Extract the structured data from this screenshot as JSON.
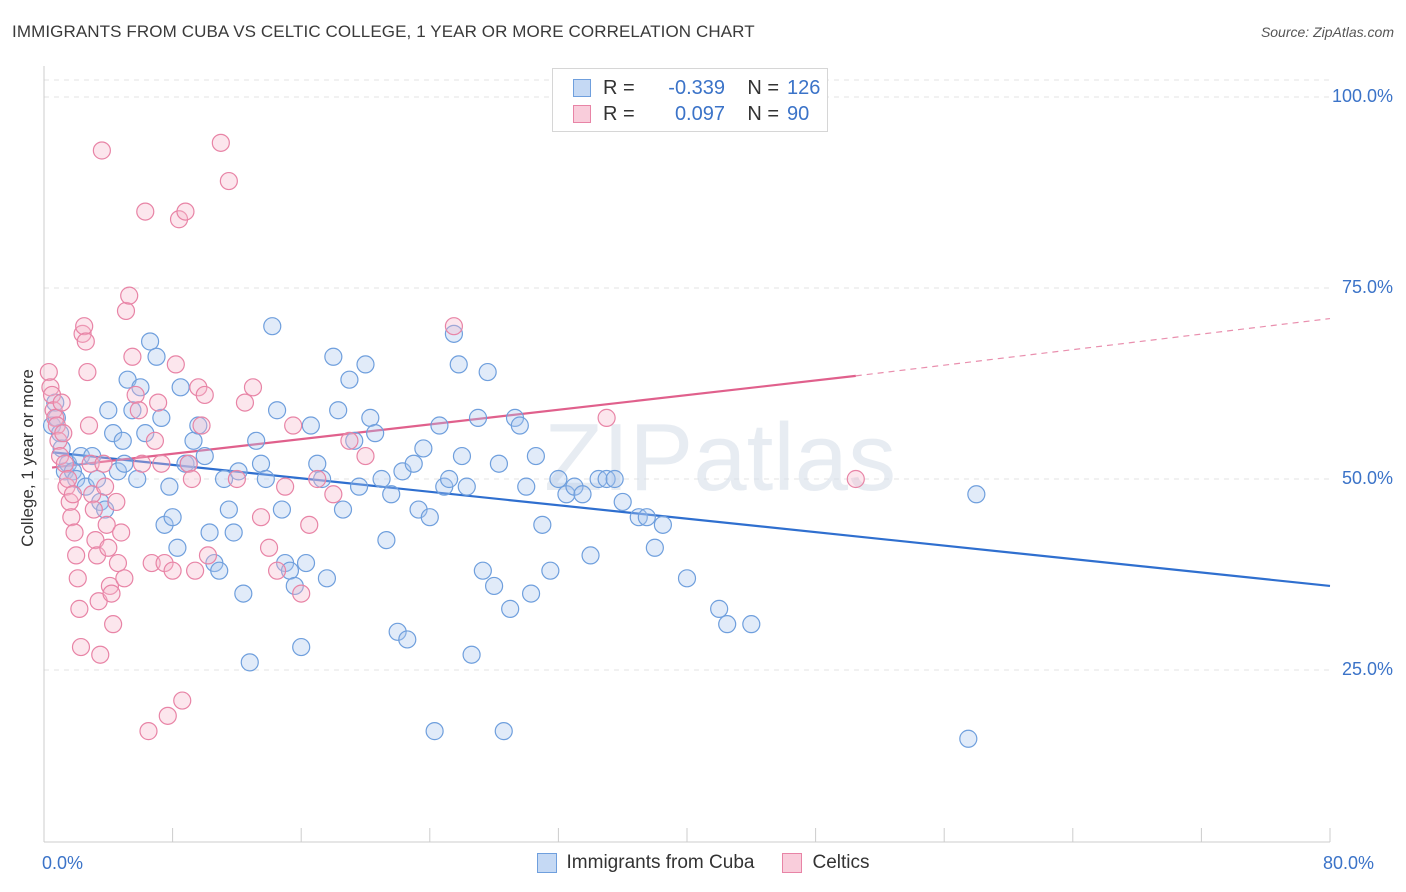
{
  "title": "IMMIGRANTS FROM CUBA VS CELTIC COLLEGE, 1 YEAR OR MORE CORRELATION CHART",
  "source": "Source: ZipAtlas.com",
  "watermark": "ZIPatlas",
  "legend": {
    "r_label": "R =",
    "n_label": "N =",
    "rows": [
      {
        "name": "Immigrants from Cuba",
        "r": "-0.339",
        "n": "126",
        "color": "#a9c7ef",
        "stroke": "#6f9fdd"
      },
      {
        "name": "Celtics",
        "r": "0.097",
        "n": "90",
        "color": "#f7b6ca",
        "stroke": "#e884a6"
      }
    ]
  },
  "chart_data": {
    "type": "scatter",
    "title": "IMMIGRANTS FROM CUBA VS CELTIC COLLEGE, 1 YEAR OR MORE CORRELATION CHART",
    "xlabel": "",
    "ylabel": "College, 1 year or more",
    "xlim": [
      0,
      80
    ],
    "ylim": [
      0,
      105
    ],
    "x_tick_labels": [
      "0.0%",
      "80.0%"
    ],
    "y_ticks": [
      25,
      50,
      75,
      100
    ],
    "y_tick_labels": [
      "25.0%",
      "50.0%",
      "75.0%",
      "100.0%"
    ],
    "grid": true,
    "legend_position": "top-center",
    "series": [
      {
        "name": "Immigrants from Cuba",
        "color": "#6f9fdd",
        "line_color": "#2f6fcf",
        "trend": {
          "x": [
            0.5,
            80
          ],
          "y": [
            53.5,
            36.0
          ]
        },
        "points": [
          [
            0.5,
            57
          ],
          [
            0.7,
            60
          ],
          [
            0.8,
            58
          ],
          [
            1.0,
            56
          ],
          [
            1.1,
            54
          ],
          [
            1.3,
            51
          ],
          [
            1.5,
            52
          ],
          [
            1.8,
            51
          ],
          [
            2.0,
            50
          ],
          [
            2.3,
            53
          ],
          [
            2.6,
            49
          ],
          [
            3.0,
            53
          ],
          [
            3.3,
            50
          ],
          [
            3.5,
            47
          ],
          [
            3.8,
            46
          ],
          [
            4.0,
            59
          ],
          [
            4.3,
            56
          ],
          [
            4.6,
            51
          ],
          [
            4.9,
            55
          ],
          [
            5.0,
            52
          ],
          [
            5.2,
            63
          ],
          [
            5.5,
            59
          ],
          [
            5.8,
            50
          ],
          [
            6.0,
            62
          ],
          [
            6.3,
            56
          ],
          [
            6.6,
            68
          ],
          [
            7.0,
            66
          ],
          [
            7.3,
            58
          ],
          [
            7.5,
            44
          ],
          [
            7.8,
            49
          ],
          [
            8.0,
            45
          ],
          [
            8.3,
            41
          ],
          [
            8.5,
            62
          ],
          [
            8.8,
            52
          ],
          [
            9.0,
            52
          ],
          [
            9.3,
            55
          ],
          [
            9.6,
            57
          ],
          [
            10.0,
            53
          ],
          [
            10.3,
            43
          ],
          [
            10.6,
            39
          ],
          [
            10.9,
            38
          ],
          [
            11.2,
            50
          ],
          [
            11.5,
            46
          ],
          [
            11.8,
            43
          ],
          [
            12.1,
            51
          ],
          [
            12.4,
            35
          ],
          [
            12.8,
            26
          ],
          [
            13.2,
            55
          ],
          [
            13.5,
            52
          ],
          [
            13.8,
            50
          ],
          [
            14.2,
            70
          ],
          [
            14.5,
            59
          ],
          [
            14.8,
            46
          ],
          [
            15.0,
            39
          ],
          [
            15.3,
            38
          ],
          [
            15.6,
            36
          ],
          [
            16.0,
            28
          ],
          [
            16.3,
            39
          ],
          [
            16.6,
            57
          ],
          [
            17.0,
            52
          ],
          [
            17.3,
            50
          ],
          [
            17.6,
            37
          ],
          [
            18.0,
            66
          ],
          [
            18.3,
            59
          ],
          [
            18.6,
            46
          ],
          [
            19.0,
            63
          ],
          [
            19.3,
            55
          ],
          [
            19.6,
            49
          ],
          [
            20.0,
            65
          ],
          [
            20.3,
            58
          ],
          [
            20.6,
            56
          ],
          [
            21.0,
            50
          ],
          [
            21.3,
            42
          ],
          [
            21.6,
            48
          ],
          [
            22.0,
            30
          ],
          [
            22.3,
            51
          ],
          [
            22.6,
            29
          ],
          [
            23.0,
            52
          ],
          [
            23.3,
            46
          ],
          [
            23.6,
            54
          ],
          [
            24.0,
            45
          ],
          [
            24.3,
            17
          ],
          [
            24.6,
            57
          ],
          [
            24.9,
            49
          ],
          [
            25.2,
            50
          ],
          [
            25.5,
            69
          ],
          [
            25.8,
            65
          ],
          [
            26.0,
            53
          ],
          [
            26.3,
            49
          ],
          [
            26.6,
            27
          ],
          [
            27.0,
            58
          ],
          [
            27.3,
            38
          ],
          [
            27.6,
            64
          ],
          [
            28.0,
            36
          ],
          [
            28.3,
            52
          ],
          [
            28.6,
            17
          ],
          [
            29.0,
            33
          ],
          [
            29.3,
            58
          ],
          [
            29.6,
            57
          ],
          [
            30.0,
            49
          ],
          [
            30.3,
            35
          ],
          [
            30.6,
            53
          ],
          [
            31.0,
            44
          ],
          [
            31.5,
            38
          ],
          [
            32.0,
            50
          ],
          [
            32.5,
            48
          ],
          [
            33.0,
            49
          ],
          [
            33.5,
            48
          ],
          [
            34.0,
            40
          ],
          [
            34.5,
            50
          ],
          [
            35.0,
            50
          ],
          [
            35.5,
            50
          ],
          [
            36.0,
            47
          ],
          [
            37.0,
            45
          ],
          [
            37.5,
            45
          ],
          [
            38.0,
            41
          ],
          [
            38.5,
            44
          ],
          [
            40.0,
            37
          ],
          [
            42.0,
            33
          ],
          [
            42.5,
            31
          ],
          [
            44.0,
            31
          ],
          [
            57.5,
            16
          ],
          [
            58.0,
            48
          ]
        ]
      },
      {
        "name": "Celtics",
        "color": "#e884a6",
        "line_color": "#e0608c",
        "trend": {
          "x": [
            0.5,
            50.5
          ],
          "y": [
            51.5,
            63.5
          ]
        },
        "trend_dashed": {
          "x": [
            50.5,
            80
          ],
          "y": [
            63.5,
            71.0
          ]
        },
        "points": [
          [
            0.3,
            64
          ],
          [
            0.4,
            62
          ],
          [
            0.5,
            61
          ],
          [
            0.6,
            59
          ],
          [
            0.7,
            58
          ],
          [
            0.8,
            57
          ],
          [
            0.9,
            55
          ],
          [
            1.0,
            53
          ],
          [
            1.1,
            60
          ],
          [
            1.2,
            56
          ],
          [
            1.3,
            52
          ],
          [
            1.4,
            49
          ],
          [
            1.5,
            50
          ],
          [
            1.6,
            47
          ],
          [
            1.7,
            45
          ],
          [
            1.8,
            48
          ],
          [
            1.9,
            43
          ],
          [
            2.0,
            40
          ],
          [
            2.1,
            37
          ],
          [
            2.2,
            33
          ],
          [
            2.3,
            28
          ],
          [
            2.4,
            69
          ],
          [
            2.5,
            70
          ],
          [
            2.6,
            68
          ],
          [
            2.7,
            64
          ],
          [
            2.8,
            57
          ],
          [
            2.9,
            52
          ],
          [
            3.0,
            48
          ],
          [
            3.1,
            46
          ],
          [
            3.2,
            42
          ],
          [
            3.3,
            40
          ],
          [
            3.4,
            34
          ],
          [
            3.5,
            27
          ],
          [
            3.6,
            93
          ],
          [
            3.7,
            52
          ],
          [
            3.8,
            49
          ],
          [
            3.9,
            44
          ],
          [
            4.0,
            41
          ],
          [
            4.1,
            36
          ],
          [
            4.2,
            35
          ],
          [
            4.3,
            31
          ],
          [
            4.5,
            47
          ],
          [
            4.6,
            39
          ],
          [
            4.8,
            43
          ],
          [
            5.0,
            37
          ],
          [
            5.1,
            72
          ],
          [
            5.3,
            74
          ],
          [
            5.5,
            66
          ],
          [
            5.7,
            61
          ],
          [
            5.9,
            59
          ],
          [
            6.1,
            52
          ],
          [
            6.3,
            85
          ],
          [
            6.5,
            17
          ],
          [
            6.7,
            39
          ],
          [
            6.9,
            55
          ],
          [
            7.1,
            60
          ],
          [
            7.3,
            52
          ],
          [
            7.5,
            39
          ],
          [
            7.7,
            19
          ],
          [
            8.0,
            38
          ],
          [
            8.2,
            65
          ],
          [
            8.4,
            84
          ],
          [
            8.6,
            21
          ],
          [
            8.8,
            85
          ],
          [
            9.0,
            52
          ],
          [
            9.2,
            50
          ],
          [
            9.4,
            38
          ],
          [
            9.6,
            62
          ],
          [
            9.8,
            57
          ],
          [
            10.0,
            61
          ],
          [
            10.2,
            40
          ],
          [
            11.0,
            94
          ],
          [
            11.5,
            89
          ],
          [
            12.0,
            50
          ],
          [
            12.5,
            60
          ],
          [
            13.0,
            62
          ],
          [
            13.5,
            45
          ],
          [
            14.0,
            41
          ],
          [
            14.5,
            38
          ],
          [
            15.0,
            49
          ],
          [
            15.5,
            57
          ],
          [
            16.0,
            35
          ],
          [
            16.5,
            44
          ],
          [
            17.0,
            50
          ],
          [
            18.0,
            48
          ],
          [
            19.0,
            55
          ],
          [
            20.0,
            53
          ],
          [
            25.5,
            70
          ],
          [
            35.0,
            58
          ],
          [
            50.5,
            50
          ]
        ]
      }
    ]
  }
}
